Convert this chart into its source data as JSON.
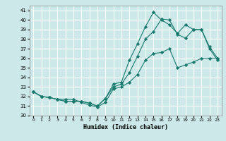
{
  "xlabel": "Humidex (Indice chaleur)",
  "bg_color": "#cce8e8",
  "grid_color": "#ffffff",
  "line_color": "#1a7a6e",
  "xlim": [
    -0.5,
    23.5
  ],
  "ylim": [
    30,
    41.5
  ],
  "yticks": [
    30,
    31,
    32,
    33,
    34,
    35,
    36,
    37,
    38,
    39,
    40,
    41
  ],
  "xticks": [
    0,
    1,
    2,
    3,
    4,
    5,
    6,
    7,
    8,
    9,
    10,
    11,
    12,
    13,
    14,
    15,
    16,
    17,
    18,
    19,
    20,
    21,
    22,
    23
  ],
  "series1_x": [
    0,
    1,
    2,
    3,
    4,
    5,
    6,
    7,
    8,
    9,
    10,
    11,
    12,
    13,
    14,
    15,
    16,
    17,
    18,
    19,
    20,
    21,
    22,
    23
  ],
  "series1_y": [
    32.5,
    32.0,
    31.9,
    31.7,
    31.7,
    31.7,
    31.4,
    31.1,
    30.9,
    31.4,
    32.8,
    33.0,
    33.5,
    34.3,
    35.8,
    36.5,
    36.6,
    37.0,
    35.0,
    35.3,
    35.6,
    36.0,
    36.0,
    36.0
  ],
  "series2_x": [
    0,
    1,
    2,
    3,
    4,
    5,
    6,
    7,
    8,
    9,
    10,
    11,
    12,
    13,
    14,
    15,
    16,
    17,
    18,
    19,
    20,
    21,
    22,
    23
  ],
  "series2_y": [
    32.5,
    32.0,
    31.9,
    31.7,
    31.5,
    31.5,
    31.5,
    31.3,
    31.0,
    31.8,
    33.0,
    33.3,
    34.5,
    36.2,
    38.0,
    38.8,
    40.1,
    40.0,
    38.5,
    38.1,
    39.0,
    39.0,
    37.0,
    35.8
  ],
  "series3_x": [
    0,
    1,
    2,
    3,
    4,
    5,
    6,
    7,
    8,
    9,
    10,
    11,
    12,
    13,
    14,
    15,
    16,
    17,
    18,
    19,
    20,
    21,
    22,
    23
  ],
  "series3_y": [
    32.5,
    32.0,
    31.9,
    31.7,
    31.5,
    31.5,
    31.5,
    31.3,
    31.0,
    31.8,
    33.3,
    33.5,
    35.8,
    37.5,
    39.3,
    40.8,
    40.0,
    39.5,
    38.6,
    39.5,
    39.0,
    39.0,
    37.2,
    36.0
  ]
}
